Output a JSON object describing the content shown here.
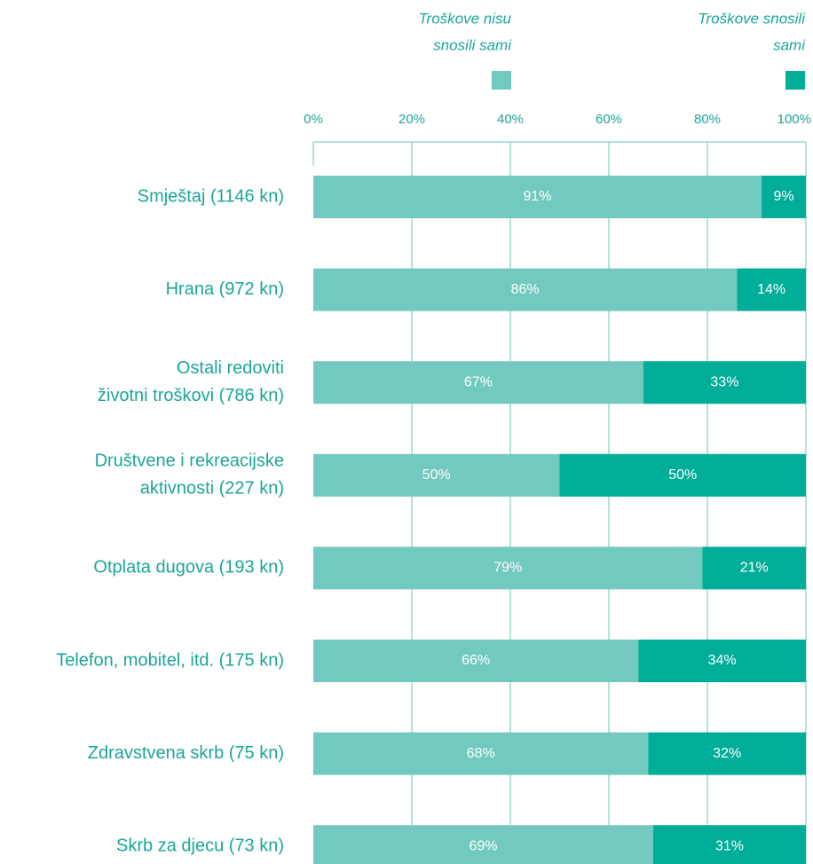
{
  "chart_data": {
    "type": "stacked_barh",
    "categories": [
      [
        "Smještaj (1146 kn)"
      ],
      [
        "Hrana (972 kn)"
      ],
      [
        "Ostali redoviti",
        "životni troškovi (786 kn)"
      ],
      [
        "Društvene i rekreacijske",
        "aktivnosti (227 kn)"
      ],
      [
        "Otplata dugova (193 kn)"
      ],
      [
        "Telefon, mobitel, itd. (175 kn)"
      ],
      [
        "Zdravstvena skrb (75 kn)"
      ],
      [
        "Skrb za djecu (73 kn)"
      ]
    ],
    "series": [
      {
        "name": [
          "Troškove nisu",
          "snosili sami"
        ],
        "color": "#72c9bf",
        "values": [
          91,
          86,
          67,
          50,
          79,
          66,
          68,
          69
        ],
        "value_labels": [
          "91%",
          "86%",
          "67%",
          "50%",
          "79%",
          "66%",
          "68%",
          "69%"
        ]
      },
      {
        "name": [
          "Troškove snosili",
          "sami"
        ],
        "color": "#00ad99",
        "values": [
          9,
          14,
          33,
          50,
          21,
          34,
          32,
          31
        ],
        "value_labels": [
          "9%",
          "14%",
          "33%",
          "50%",
          "21%",
          "34%",
          "32%",
          "31%"
        ]
      }
    ],
    "xlim": [
      0,
      100
    ],
    "xticks": [
      {
        "value": 0,
        "label": "0%"
      },
      {
        "value": 20,
        "label": "20%"
      },
      {
        "value": 40,
        "label": "40%"
      },
      {
        "value": 60,
        "label": "60%"
      },
      {
        "value": 80,
        "label": "80%"
      },
      {
        "value": 100,
        "label": "100%"
      }
    ],
    "grid": true
  }
}
